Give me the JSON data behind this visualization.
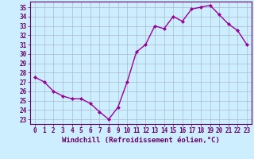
{
  "x": [
    0,
    1,
    2,
    3,
    4,
    5,
    6,
    7,
    8,
    9,
    10,
    11,
    12,
    13,
    14,
    15,
    16,
    17,
    18,
    19,
    20,
    21,
    22,
    23
  ],
  "y": [
    27.5,
    27.0,
    26.0,
    25.5,
    25.2,
    25.2,
    24.7,
    23.8,
    23.0,
    24.3,
    27.0,
    30.2,
    31.0,
    33.0,
    32.7,
    34.0,
    33.5,
    34.8,
    35.0,
    35.2,
    34.2,
    33.2,
    32.5,
    31.0
  ],
  "line_color": "#990099",
  "marker": "D",
  "marker_size": 2,
  "linewidth": 1.0,
  "xlabel": "Windchill (Refroidissement éolien,°C)",
  "xlabel_color": "#660066",
  "xlabel_fontsize": 6.5,
  "ylabel_ticks": [
    23,
    24,
    25,
    26,
    27,
    28,
    29,
    30,
    31,
    32,
    33,
    34,
    35
  ],
  "xtick_labels": [
    "0",
    "1",
    "2",
    "3",
    "4",
    "5",
    "6",
    "7",
    "8",
    "9",
    "10",
    "11",
    "12",
    "13",
    "14",
    "15",
    "16",
    "17",
    "18",
    "19",
    "20",
    "21",
    "22",
    "23"
  ],
  "ylim": [
    22.5,
    35.6
  ],
  "xlim": [
    -0.5,
    23.5
  ],
  "bg_color": "#cceeff",
  "grid_color": "#aabbcc",
  "tick_fontsize": 5.5,
  "tick_color": "#660066"
}
